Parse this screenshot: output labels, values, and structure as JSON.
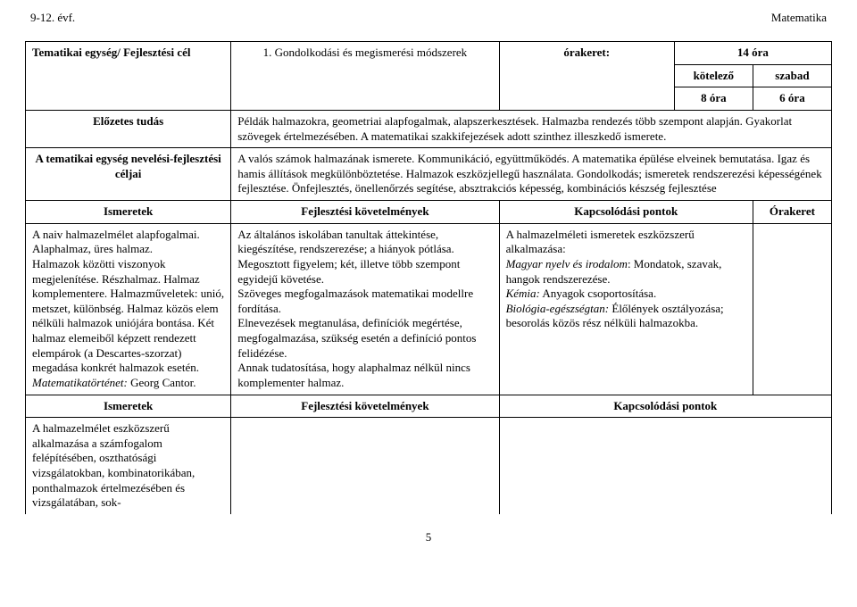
{
  "header_left": "9-12. évf.",
  "header_right": "Matematika",
  "row1": {
    "title": "Tematikai egység/ Fejlesztési cél",
    "mid": "1. Gondolkodási és megismerési módszerek",
    "orakeret": "órakeret:",
    "total": "14 óra",
    "kotelezo_hdr": "kötelező",
    "szabad_hdr": "szabad",
    "kotelezo_val": "8 óra",
    "szabad_val": "6 óra"
  },
  "row2": {
    "label": "Előzetes tudás",
    "text": "Példák halmazokra, geometriai alapfogalmak, alapszerkesztések. Halmazba rendezés több szempont alapján. Gyakorlat szövegek értelmezésében. A matematikai szakkifejezések adott szinthez illeszkedő ismerete."
  },
  "row3": {
    "label": "A tematikai egység nevelési-fejlesztési céljai",
    "text": "A valós számok halmazának ismerete. Kommunikáció, együttműködés. A matematika épülése elveinek bemutatása. Igaz és hamis állítások megkülönböztetése. Halmazok eszközjellegű használata. Gondolkodás; ismeretek rendszerezési képességének fejlesztése. Önfejlesztés, önellenőrzés segítése, absztrakciós képesség, kombinációs készség fejlesztése"
  },
  "hdr2": {
    "ismeretek": "Ismeretek",
    "fejl": "Fejlesztési követelmények",
    "kapcs": "Kapcsolódási pontok",
    "orak": "Órakeret"
  },
  "body1": {
    "col1a": "A naiv halmazelmélet alapfogalmai. Alaphalmaz, üres halmaz.",
    "col1b": "Halmazok közötti viszonyok megjelenítése. Részhalmaz. Halmaz komplementere. Halmazműveletek: unió, metszet, különbség. Halmaz közös elem nélküli halmazok uniójára bontása. Két halmaz elemeiből képzett rendezett elempárok (a  Descartes-szorzat) megadása konkrét halmazok esetén.",
    "col1c": "Matematikatörténet:",
    "col1c2": " Georg Cantor.",
    "col2": "Az általános iskolában tanultak áttekintése, kiegészítése, rendszerezése; a hiányok pótlása.\nMegosztott figyelem; két, illetve több szempont egyidejű követése.\nSzöveges megfogalmazások matematikai modellre fordítása.\nElnevezések megtanulása, definíciók  megértése, megfogalmazása, szükség esetén a definíció pontos felidézése.\nAnnak tudatosítása, hogy alaphalmaz nélkül nincs komplementer halmaz.",
    "col3a": "A halmazelméleti ismeretek eszközszerű alkalmazása:",
    "col3b_i": "Magyar nyelv és irodalom",
    "col3b_r": ": Mondatok, szavak, hangok rendszerezése.",
    "col3c_i": "Kémia:",
    "col3c_r": " Anyagok csoportosítása.",
    "col3d_i": "Biológia-egészségtan:",
    "col3d_r": " Élőlények osztályozása; besorolás közös rész nélküli halmazokba."
  },
  "hdr3": {
    "ismeretek": "Ismeretek",
    "fejl": "Fejlesztési követelmények",
    "kapcs": "Kapcsolódási pontok"
  },
  "body2": {
    "col1": "A halmazelmélet eszközszerű alkalmazása a számfogalom felépítésében, oszthatósági vizsgálatokban, kombinatorikában, ponthalmazok értelmezésében és vizsgálatában, sok-"
  },
  "pagenum": "5"
}
